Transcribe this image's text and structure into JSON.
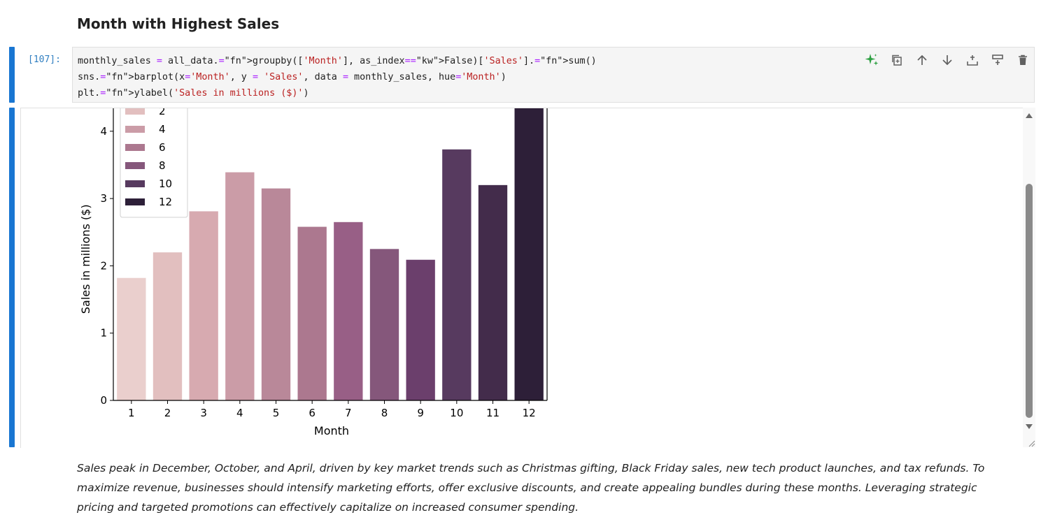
{
  "heading": "Month with Highest Sales",
  "cell": {
    "prompt": "[107]:",
    "code_lines": [
      "monthly_sales = all_data.groupby(['Month'], as_index=False)['Sales'].sum()",
      "sns.barplot(x='Month', y = 'Sales', data = monthly_sales, hue='Month')",
      "plt.ylabel('Sales in millions ($)')"
    ]
  },
  "toolbar": {
    "icons": [
      "sparkle-icon",
      "duplicate-icon",
      "arrow-up-icon",
      "arrow-down-icon",
      "insert-above-icon",
      "insert-below-icon",
      "trash-icon"
    ],
    "accent": "#2ea043"
  },
  "chart_data": {
    "type": "bar",
    "categories": [
      "1",
      "2",
      "3",
      "4",
      "5",
      "6",
      "7",
      "8",
      "9",
      "10",
      "11",
      "12"
    ],
    "values": [
      1.82,
      2.2,
      2.81,
      3.39,
      3.15,
      2.58,
      2.65,
      2.25,
      2.09,
      3.73,
      3.2,
      4.61
    ],
    "colors": [
      "#eacfcd",
      "#e2bfbf",
      "#d7aab0",
      "#cb9ca7",
      "#b98899",
      "#ac788f",
      "#985f86",
      "#85577b",
      "#6b3f6c",
      "#573a5f",
      "#432c4b",
      "#2d1f38"
    ],
    "xlabel": "Month",
    "ylabel": "Sales in millions ($)",
    "y_ticks": [
      0,
      1,
      2,
      3,
      4
    ],
    "ylim": [
      0,
      4.9
    ],
    "legend": {
      "placement": "top-left",
      "entries": [
        "2",
        "4",
        "6",
        "8",
        "10",
        "12"
      ],
      "colors": [
        "#e2bfbf",
        "#cb9ca7",
        "#ac788f",
        "#85577b",
        "#573a5f",
        "#2d1f38"
      ]
    }
  },
  "markdown": "Sales peak in December, October, and April, driven by key market trends such as Christmas gifting, Black Friday sales, new tech product launches, and tax refunds. To maximize revenue, businesses should intensify marketing efforts, offer exclusive discounts, and create appealing bundles during these months. Leveraging strategic pricing and targeted promotions can effectively capitalize on increased consumer spending."
}
